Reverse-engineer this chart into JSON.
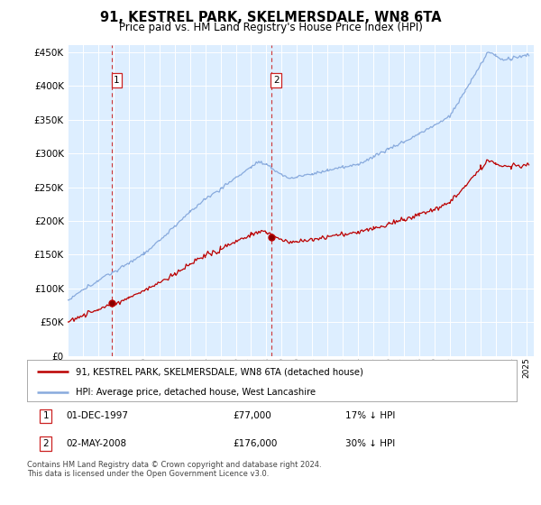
{
  "title": "91, KESTREL PARK, SKELMERSDALE, WN8 6TA",
  "subtitle": "Price paid vs. HM Land Registry's House Price Index (HPI)",
  "sale1_note": "01-DEC-1997",
  "sale1_price": 77000,
  "sale1_price_str": "£77,000",
  "sale1_pct": "17% ↓ HPI",
  "sale2_note": "02-MAY-2008",
  "sale2_price": 176000,
  "sale2_price_str": "£176,000",
  "sale2_pct": "30% ↓ HPI",
  "legend_property": "91, KESTREL PARK, SKELMERSDALE, WN8 6TA (detached house)",
  "legend_hpi": "HPI: Average price, detached house, West Lancashire",
  "footer": "Contains HM Land Registry data © Crown copyright and database right 2024.\nThis data is licensed under the Open Government Licence v3.0.",
  "property_color": "#bb0000",
  "hpi_color": "#88aadd",
  "dashed_line_color": "#cc2222",
  "background_color": "#ddeeff",
  "ylim_min": 0,
  "ylim_max": 460000,
  "yticks": [
    0,
    50000,
    100000,
    150000,
    200000,
    250000,
    300000,
    350000,
    400000,
    450000
  ]
}
